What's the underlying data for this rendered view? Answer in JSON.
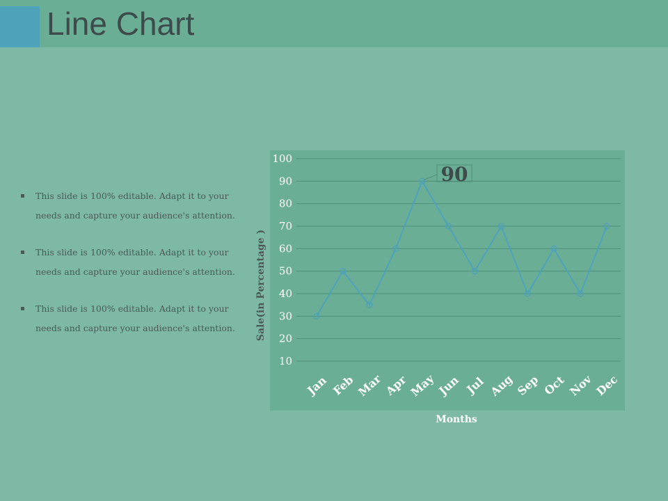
{
  "header": {
    "title": "Line Chart",
    "bar_color": "#6aae96",
    "accent_color": "#4ea2ba"
  },
  "bullets": [
    "This slide is 100% editable. Adapt it to your needs and capture your audience's attention.",
    "This slide is 100% editable. Adapt it to your needs and capture your audience's attention.",
    "This slide is 100% editable. Adapt it to your needs and capture your audience's attention."
  ],
  "chart_data": {
    "type": "line",
    "categories": [
      "Jan",
      "Feb",
      "Mar",
      "Apr",
      "May",
      "Jun",
      "Jul",
      "Aug",
      "Sep",
      "Oct",
      "Nov",
      "Dec"
    ],
    "series": [
      {
        "values": [
          30,
          50,
          35,
          60,
          90,
          70,
          50,
          70,
          40,
          60,
          40,
          70
        ],
        "color": "#4ea2ba"
      }
    ],
    "xlabel": "Months",
    "ylabel": "Sale(in Percentage )",
    "yticks": [
      10,
      20,
      30,
      40,
      50,
      60,
      70,
      80,
      90,
      100
    ],
    "ylim": [
      0,
      100
    ],
    "grid": true,
    "legend": "none",
    "annotation": {
      "category": "May",
      "text": "90"
    },
    "plot_bg": "#6aae96"
  }
}
